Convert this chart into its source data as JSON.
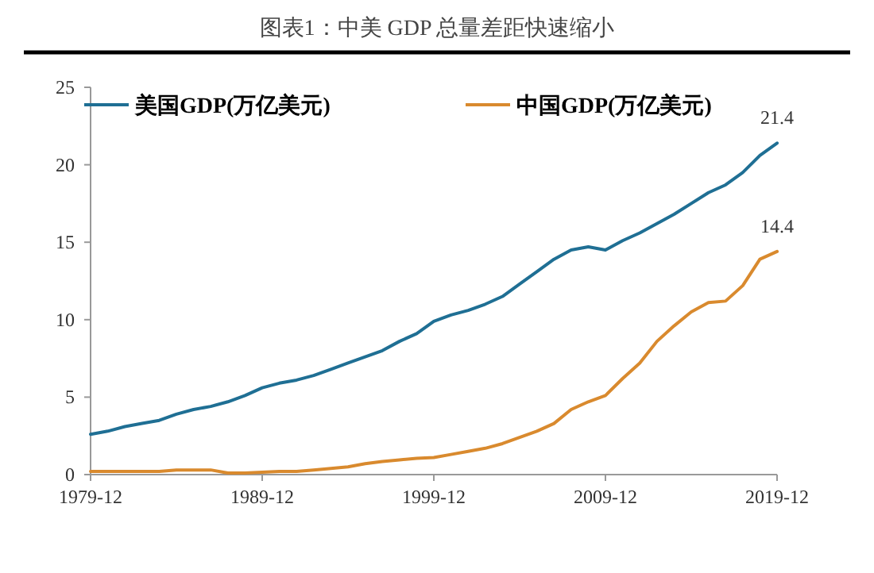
{
  "chart_data": {
    "type": "line",
    "title": "图表1：中美 GDP 总量差距快速缩小",
    "x": [
      "1979-12",
      "1980-12",
      "1981-12",
      "1982-12",
      "1983-12",
      "1984-12",
      "1985-12",
      "1986-12",
      "1987-12",
      "1988-12",
      "1989-12",
      "1990-12",
      "1991-12",
      "1992-12",
      "1993-12",
      "1994-12",
      "1995-12",
      "1996-12",
      "1997-12",
      "1998-12",
      "1999-12",
      "2000-12",
      "2001-12",
      "2002-12",
      "2003-12",
      "2004-12",
      "2005-12",
      "2006-12",
      "2007-12",
      "2008-12",
      "2009-12",
      "2010-12",
      "2011-12",
      "2012-12",
      "2013-12",
      "2014-12",
      "2015-12",
      "2016-12",
      "2017-12",
      "2018-12",
      "2019-12"
    ],
    "series": [
      {
        "name": "美国GDP(万亿美元)",
        "color": "#1f6f94",
        "values": [
          2.6,
          2.8,
          3.1,
          3.3,
          3.5,
          3.9,
          4.2,
          4.4,
          4.7,
          5.1,
          5.6,
          5.9,
          6.1,
          6.4,
          6.8,
          7.2,
          7.6,
          8.0,
          8.6,
          9.1,
          9.9,
          10.3,
          10.6,
          11.0,
          11.5,
          12.3,
          13.1,
          13.9,
          14.5,
          14.7,
          14.5,
          15.1,
          15.6,
          16.2,
          16.8,
          17.5,
          18.2,
          18.7,
          19.5,
          20.6,
          21.4
        ],
        "value_labels": [
          null,
          null,
          null,
          null,
          null,
          null,
          null,
          null,
          null,
          null,
          null,
          null,
          null,
          null,
          null,
          null,
          null,
          null,
          null,
          null,
          null,
          null,
          null,
          null,
          null,
          null,
          null,
          null,
          null,
          null,
          null,
          null,
          null,
          null,
          null,
          null,
          null,
          null,
          null,
          null,
          "21.4"
        ]
      },
      {
        "name": "中国GDP(万亿美元)",
        "color": "#d98a2e",
        "values": [
          0.2,
          0.2,
          0.2,
          0.2,
          0.2,
          0.3,
          0.3,
          0.3,
          0.1,
          0.1,
          0.15,
          0.2,
          0.2,
          0.3,
          0.4,
          0.5,
          0.7,
          0.85,
          0.95,
          1.05,
          1.1,
          1.3,
          1.5,
          1.7,
          2.0,
          2.4,
          2.8,
          3.3,
          4.2,
          4.7,
          5.1,
          6.2,
          7.2,
          8.6,
          9.6,
          10.5,
          11.1,
          11.2,
          12.2,
          13.9,
          14.4
        ],
        "value_labels": [
          null,
          null,
          null,
          null,
          null,
          null,
          null,
          null,
          null,
          null,
          null,
          null,
          null,
          null,
          null,
          null,
          null,
          null,
          null,
          null,
          null,
          null,
          null,
          null,
          null,
          null,
          null,
          null,
          null,
          null,
          null,
          null,
          null,
          null,
          null,
          null,
          null,
          null,
          null,
          null,
          "14.4"
        ]
      }
    ],
    "xlim": [
      "1979-12",
      "2019-12"
    ],
    "xticks": [
      "1979-12",
      "1989-12",
      "1999-12",
      "2009-12",
      "2019-12"
    ],
    "ylim": [
      0,
      25
    ],
    "yticks": [
      0,
      5,
      10,
      15,
      20,
      25
    ],
    "grid": false,
    "legend": "top",
    "marker": "none",
    "line_style": "solid"
  }
}
